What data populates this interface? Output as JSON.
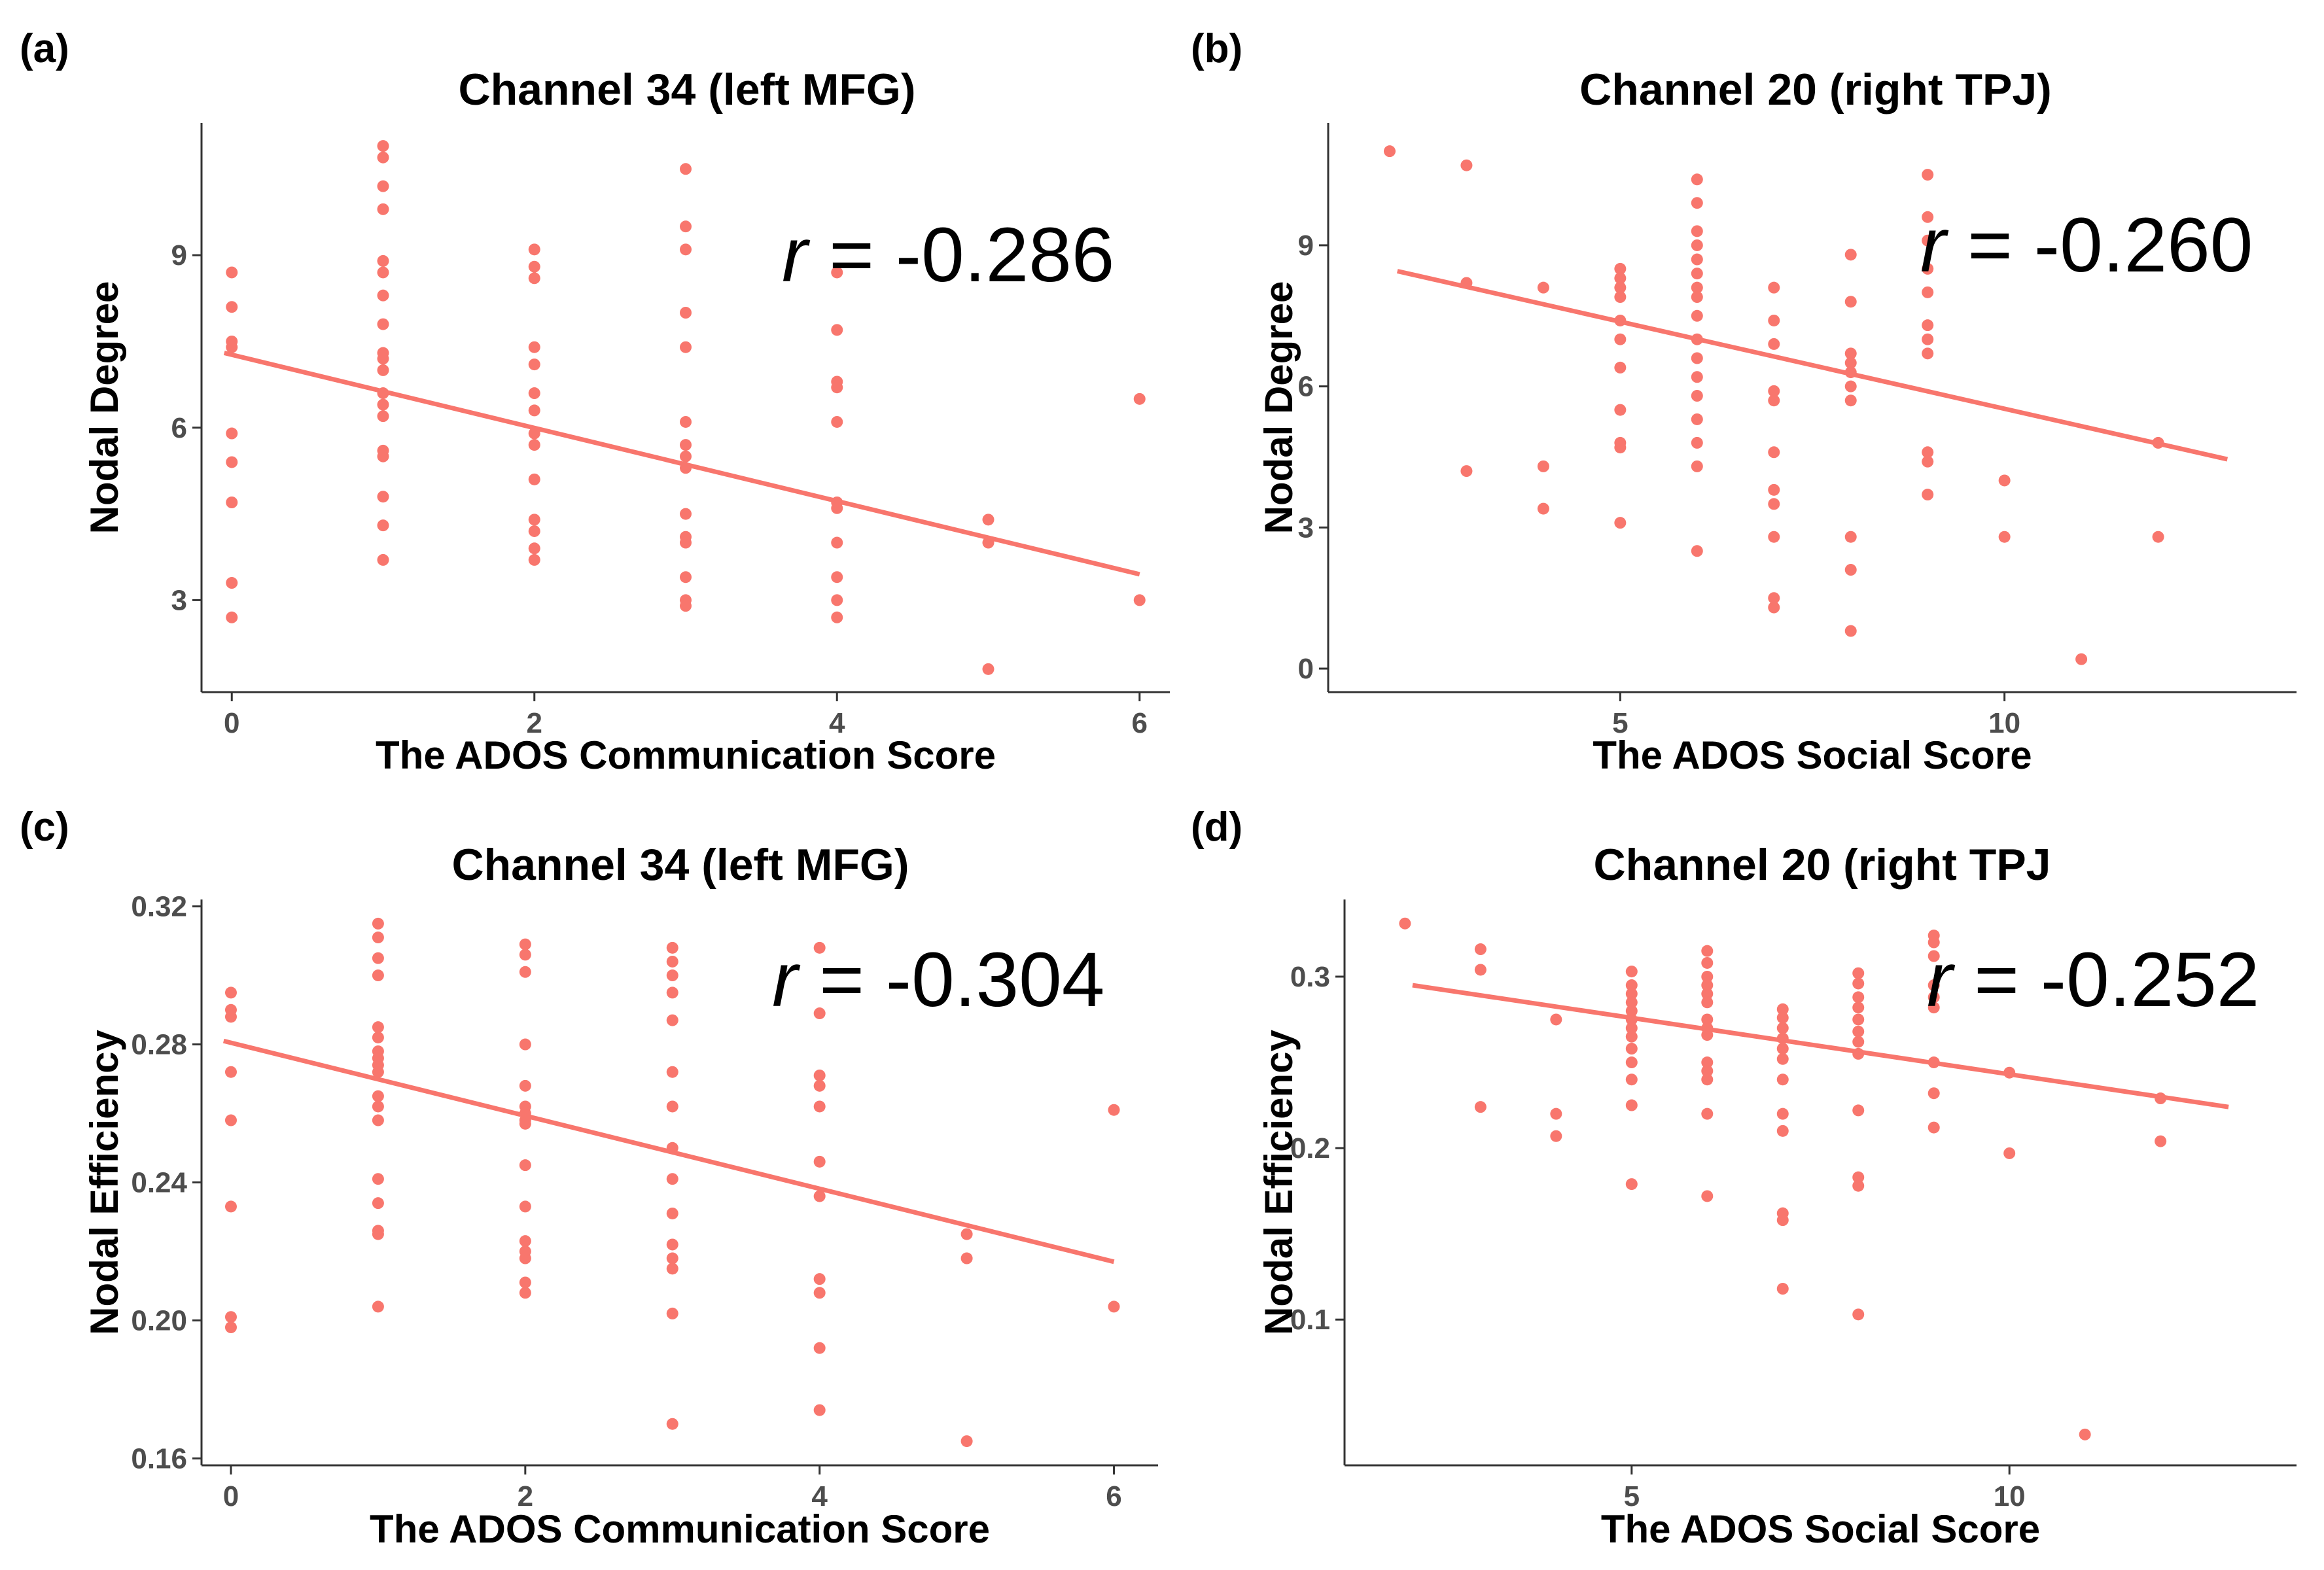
{
  "figure": {
    "point_color": "#F8766D",
    "line_color": "#F8766D"
  },
  "chart_data": [
    {
      "type": "scatter",
      "panel_label": "(a)",
      "title": "Channel 34 (left MFG)",
      "xlabel": "The ADOS Communication Score",
      "ylabel": "Nodal Degree",
      "xlim": [
        -0.2,
        6.2
      ],
      "ylim": [
        1.4,
        11.3
      ],
      "xticks": [
        0,
        2,
        4,
        6
      ],
      "xtick_labels": [
        "0",
        "2",
        "4",
        "6"
      ],
      "yticks": [
        3,
        6,
        9
      ],
      "ytick_labels": [
        "3",
        "6",
        "9"
      ],
      "r_label": "r",
      "r_value": " = -0.286",
      "fit": {
        "x": [
          -0.05,
          6.0
        ],
        "y": [
          7.3,
          3.45
        ]
      },
      "points": [
        [
          0,
          8.7
        ],
        [
          0,
          8.1
        ],
        [
          0,
          7.5
        ],
        [
          0,
          7.4
        ],
        [
          0,
          5.9
        ],
        [
          0,
          5.4
        ],
        [
          0,
          4.7
        ],
        [
          0,
          3.3
        ],
        [
          0,
          2.7
        ],
        [
          1,
          10.9
        ],
        [
          1,
          10.7
        ],
        [
          1,
          10.2
        ],
        [
          1,
          9.8
        ],
        [
          1,
          8.9
        ],
        [
          1,
          8.7
        ],
        [
          1,
          8.3
        ],
        [
          1,
          7.8
        ],
        [
          1,
          7.3
        ],
        [
          1,
          7.2
        ],
        [
          1,
          7.0
        ],
        [
          1,
          6.6
        ],
        [
          1,
          6.4
        ],
        [
          1,
          6.2
        ],
        [
          1,
          5.6
        ],
        [
          1,
          5.5
        ],
        [
          1,
          4.8
        ],
        [
          1,
          4.3
        ],
        [
          1,
          3.7
        ],
        [
          2,
          9.1
        ],
        [
          2,
          8.8
        ],
        [
          2,
          8.6
        ],
        [
          2,
          7.4
        ],
        [
          2,
          7.1
        ],
        [
          2,
          6.6
        ],
        [
          2,
          6.3
        ],
        [
          2,
          5.9
        ],
        [
          2,
          5.7
        ],
        [
          2,
          5.1
        ],
        [
          2,
          4.4
        ],
        [
          2,
          4.2
        ],
        [
          2,
          3.9
        ],
        [
          2,
          3.7
        ],
        [
          3,
          10.5
        ],
        [
          3,
          9.5
        ],
        [
          3,
          9.1
        ],
        [
          3,
          8.0
        ],
        [
          3,
          7.4
        ],
        [
          3,
          6.1
        ],
        [
          3,
          5.7
        ],
        [
          3,
          5.5
        ],
        [
          3,
          5.3
        ],
        [
          3,
          4.5
        ],
        [
          3,
          4.1
        ],
        [
          3,
          4.0
        ],
        [
          3,
          3.4
        ],
        [
          3,
          3.0
        ],
        [
          3,
          2.9
        ],
        [
          4,
          8.7
        ],
        [
          4,
          7.7
        ],
        [
          4,
          6.8
        ],
        [
          4,
          6.7
        ],
        [
          4,
          6.1
        ],
        [
          4,
          4.7
        ],
        [
          4,
          4.6
        ],
        [
          4,
          4.0
        ],
        [
          4,
          3.4
        ],
        [
          4,
          3.0
        ],
        [
          4,
          2.7
        ],
        [
          5,
          4.4
        ],
        [
          5,
          4.0
        ],
        [
          5,
          1.8
        ],
        [
          6,
          6.5
        ],
        [
          6,
          3.0
        ]
      ]
    },
    {
      "type": "scatter",
      "panel_label": "(b)",
      "title": "Channel 20 (right TPJ)",
      "xlabel": "The ADOS Social Score",
      "ylabel": "Nodal Degree",
      "xlim": [
        1.2,
        13.8
      ],
      "ylim": [
        -0.5,
        11.6
      ],
      "xticks": [
        5,
        10
      ],
      "xtick_labels": [
        "5",
        "10"
      ],
      "yticks": [
        0,
        3,
        6,
        9
      ],
      "ytick_labels": [
        "0",
        "3",
        "6",
        "9"
      ],
      "r_label": "r",
      "r_value": " = -0.260",
      "fit": {
        "x": [
          2.1,
          12.9
        ],
        "y": [
          8.45,
          4.45
        ]
      },
      "points": [
        [
          2,
          11.0
        ],
        [
          3,
          10.7
        ],
        [
          3,
          8.2
        ],
        [
          3,
          4.2
        ],
        [
          4,
          8.1
        ],
        [
          4,
          4.3
        ],
        [
          4,
          3.4
        ],
        [
          5,
          8.5
        ],
        [
          5,
          8.3
        ],
        [
          5,
          8.1
        ],
        [
          5,
          7.9
        ],
        [
          5,
          7.4
        ],
        [
          5,
          7.0
        ],
        [
          5,
          6.4
        ],
        [
          5,
          5.5
        ],
        [
          5,
          4.8
        ],
        [
          5,
          4.7
        ],
        [
          5,
          3.1
        ],
        [
          6,
          10.4
        ],
        [
          6,
          9.9
        ],
        [
          6,
          9.3
        ],
        [
          6,
          9.0
        ],
        [
          6,
          8.7
        ],
        [
          6,
          8.4
        ],
        [
          6,
          8.1
        ],
        [
          6,
          7.9
        ],
        [
          6,
          7.5
        ],
        [
          6,
          7.0
        ],
        [
          6,
          6.6
        ],
        [
          6,
          6.2
        ],
        [
          6,
          5.8
        ],
        [
          6,
          5.3
        ],
        [
          6,
          4.8
        ],
        [
          6,
          4.3
        ],
        [
          6,
          2.5
        ],
        [
          7,
          8.1
        ],
        [
          7,
          7.4
        ],
        [
          7,
          6.9
        ],
        [
          7,
          5.9
        ],
        [
          7,
          5.7
        ],
        [
          7,
          4.6
        ],
        [
          7,
          3.8
        ],
        [
          7,
          3.5
        ],
        [
          7,
          2.8
        ],
        [
          7,
          1.5
        ],
        [
          7,
          1.3
        ],
        [
          8,
          8.8
        ],
        [
          8,
          7.8
        ],
        [
          8,
          6.7
        ],
        [
          8,
          6.5
        ],
        [
          8,
          6.3
        ],
        [
          8,
          6.0
        ],
        [
          8,
          5.7
        ],
        [
          8,
          2.8
        ],
        [
          8,
          2.1
        ],
        [
          8,
          0.8
        ],
        [
          9,
          10.5
        ],
        [
          9,
          9.6
        ],
        [
          9,
          9.1
        ],
        [
          9,
          8.5
        ],
        [
          9,
          8.0
        ],
        [
          9,
          7.3
        ],
        [
          9,
          7.0
        ],
        [
          9,
          6.7
        ],
        [
          9,
          4.6
        ],
        [
          9,
          4.4
        ],
        [
          9,
          3.7
        ],
        [
          10,
          4.0
        ],
        [
          10,
          2.8
        ],
        [
          11,
          0.2
        ],
        [
          12,
          4.8
        ],
        [
          12,
          2.8
        ]
      ]
    },
    {
      "type": "scatter",
      "panel_label": "(c)",
      "title": "Channel 34 (left MFG)",
      "xlabel": "The ADOS Communication Score",
      "ylabel": "Nodal Efficiency",
      "xlim": [
        -0.2,
        6.3
      ],
      "ylim": [
        0.158,
        0.322
      ],
      "xticks": [
        0,
        2,
        4,
        6
      ],
      "xtick_labels": [
        "0",
        "2",
        "4",
        "6"
      ],
      "yticks": [
        0.16,
        0.2,
        0.24,
        0.28,
        0.32
      ],
      "ytick_labels": [
        "0.16",
        "0.20",
        "0.24",
        "0.28",
        "0.32"
      ],
      "r_label": "r",
      "r_value": " = -0.304",
      "fit": {
        "x": [
          -0.05,
          6.0
        ],
        "y": [
          0.281,
          0.217
        ]
      },
      "points": [
        [
          0,
          0.295
        ],
        [
          0,
          0.29
        ],
        [
          0,
          0.288
        ],
        [
          0,
          0.272
        ],
        [
          0,
          0.258
        ],
        [
          0,
          0.233
        ],
        [
          0,
          0.201
        ],
        [
          0,
          0.198
        ],
        [
          1,
          0.315
        ],
        [
          1,
          0.311
        ],
        [
          1,
          0.305
        ],
        [
          1,
          0.3
        ],
        [
          1,
          0.285
        ],
        [
          1,
          0.282
        ],
        [
          1,
          0.278
        ],
        [
          1,
          0.276
        ],
        [
          1,
          0.274
        ],
        [
          1,
          0.272
        ],
        [
          1,
          0.265
        ],
        [
          1,
          0.262
        ],
        [
          1,
          0.258
        ],
        [
          1,
          0.241
        ],
        [
          1,
          0.234
        ],
        [
          1,
          0.226
        ],
        [
          1,
          0.225
        ],
        [
          1,
          0.204
        ],
        [
          2,
          0.309
        ],
        [
          2,
          0.306
        ],
        [
          2,
          0.301
        ],
        [
          2,
          0.28
        ],
        [
          2,
          0.268
        ],
        [
          2,
          0.262
        ],
        [
          2,
          0.26
        ],
        [
          2,
          0.258
        ],
        [
          2,
          0.257
        ],
        [
          2,
          0.245
        ],
        [
          2,
          0.233
        ],
        [
          2,
          0.223
        ],
        [
          2,
          0.22
        ],
        [
          2,
          0.218
        ],
        [
          2,
          0.211
        ],
        [
          2,
          0.208
        ],
        [
          3,
          0.308
        ],
        [
          3,
          0.304
        ],
        [
          3,
          0.3
        ],
        [
          3,
          0.295
        ],
        [
          3,
          0.287
        ],
        [
          3,
          0.272
        ],
        [
          3,
          0.262
        ],
        [
          3,
          0.25
        ],
        [
          3,
          0.241
        ],
        [
          3,
          0.231
        ],
        [
          3,
          0.222
        ],
        [
          3,
          0.218
        ],
        [
          3,
          0.215
        ],
        [
          3,
          0.202
        ],
        [
          3,
          0.17
        ],
        [
          4,
          0.308
        ],
        [
          4,
          0.289
        ],
        [
          4,
          0.271
        ],
        [
          4,
          0.268
        ],
        [
          4,
          0.262
        ],
        [
          4,
          0.246
        ],
        [
          4,
          0.236
        ],
        [
          4,
          0.212
        ],
        [
          4,
          0.208
        ],
        [
          4,
          0.192
        ],
        [
          4,
          0.174
        ],
        [
          5,
          0.225
        ],
        [
          5,
          0.218
        ],
        [
          5,
          0.165
        ],
        [
          6,
          0.261
        ],
        [
          6,
          0.204
        ]
      ]
    },
    {
      "type": "scatter",
      "panel_label": "(d)",
      "title": "Channel 20 (right TPJ",
      "xlabel": "The ADOS Social Score",
      "ylabel": "Nodal Efficiency",
      "xlim": [
        1.2,
        13.8
      ],
      "ylim": [
        0.015,
        0.345
      ],
      "xticks": [
        5,
        10
      ],
      "xtick_labels": [
        "5",
        "10"
      ],
      "yticks": [
        0.1,
        0.2,
        0.3
      ],
      "ytick_labels": [
        "0.1",
        "0.2",
        "0.3"
      ],
      "r_label": "r",
      "r_value": " = -0.252",
      "fit": {
        "x": [
          2.1,
          12.9
        ],
        "y": [
          0.295,
          0.224
        ]
      },
      "points": [
        [
          2,
          0.331
        ],
        [
          3,
          0.316
        ],
        [
          3,
          0.304
        ],
        [
          3,
          0.224
        ],
        [
          4,
          0.275
        ],
        [
          4,
          0.22
        ],
        [
          4,
          0.207
        ],
        [
          5,
          0.303
        ],
        [
          5,
          0.295
        ],
        [
          5,
          0.29
        ],
        [
          5,
          0.285
        ],
        [
          5,
          0.28
        ],
        [
          5,
          0.275
        ],
        [
          5,
          0.27
        ],
        [
          5,
          0.265
        ],
        [
          5,
          0.258
        ],
        [
          5,
          0.25
        ],
        [
          5,
          0.24
        ],
        [
          5,
          0.225
        ],
        [
          5,
          0.179
        ],
        [
          6,
          0.315
        ],
        [
          6,
          0.308
        ],
        [
          6,
          0.3
        ],
        [
          6,
          0.295
        ],
        [
          6,
          0.29
        ],
        [
          6,
          0.285
        ],
        [
          6,
          0.275
        ],
        [
          6,
          0.27
        ],
        [
          6,
          0.266
        ],
        [
          6,
          0.25
        ],
        [
          6,
          0.245
        ],
        [
          6,
          0.24
        ],
        [
          6,
          0.22
        ],
        [
          6,
          0.172
        ],
        [
          7,
          0.281
        ],
        [
          7,
          0.276
        ],
        [
          7,
          0.27
        ],
        [
          7,
          0.264
        ],
        [
          7,
          0.258
        ],
        [
          7,
          0.252
        ],
        [
          7,
          0.24
        ],
        [
          7,
          0.22
        ],
        [
          7,
          0.21
        ],
        [
          7,
          0.162
        ],
        [
          7,
          0.158
        ],
        [
          7,
          0.118
        ],
        [
          8,
          0.302
        ],
        [
          8,
          0.296
        ],
        [
          8,
          0.288
        ],
        [
          8,
          0.282
        ],
        [
          8,
          0.275
        ],
        [
          8,
          0.268
        ],
        [
          8,
          0.262
        ],
        [
          8,
          0.255
        ],
        [
          8,
          0.222
        ],
        [
          8,
          0.183
        ],
        [
          8,
          0.178
        ],
        [
          8,
          0.103
        ],
        [
          9,
          0.324
        ],
        [
          9,
          0.32
        ],
        [
          9,
          0.312
        ],
        [
          9,
          0.295
        ],
        [
          9,
          0.288
        ],
        [
          9,
          0.282
        ],
        [
          9,
          0.25
        ],
        [
          9,
          0.232
        ],
        [
          9,
          0.212
        ],
        [
          10,
          0.244
        ],
        [
          10,
          0.197
        ],
        [
          11,
          0.033
        ],
        [
          12,
          0.229
        ],
        [
          12,
          0.204
        ]
      ]
    }
  ]
}
